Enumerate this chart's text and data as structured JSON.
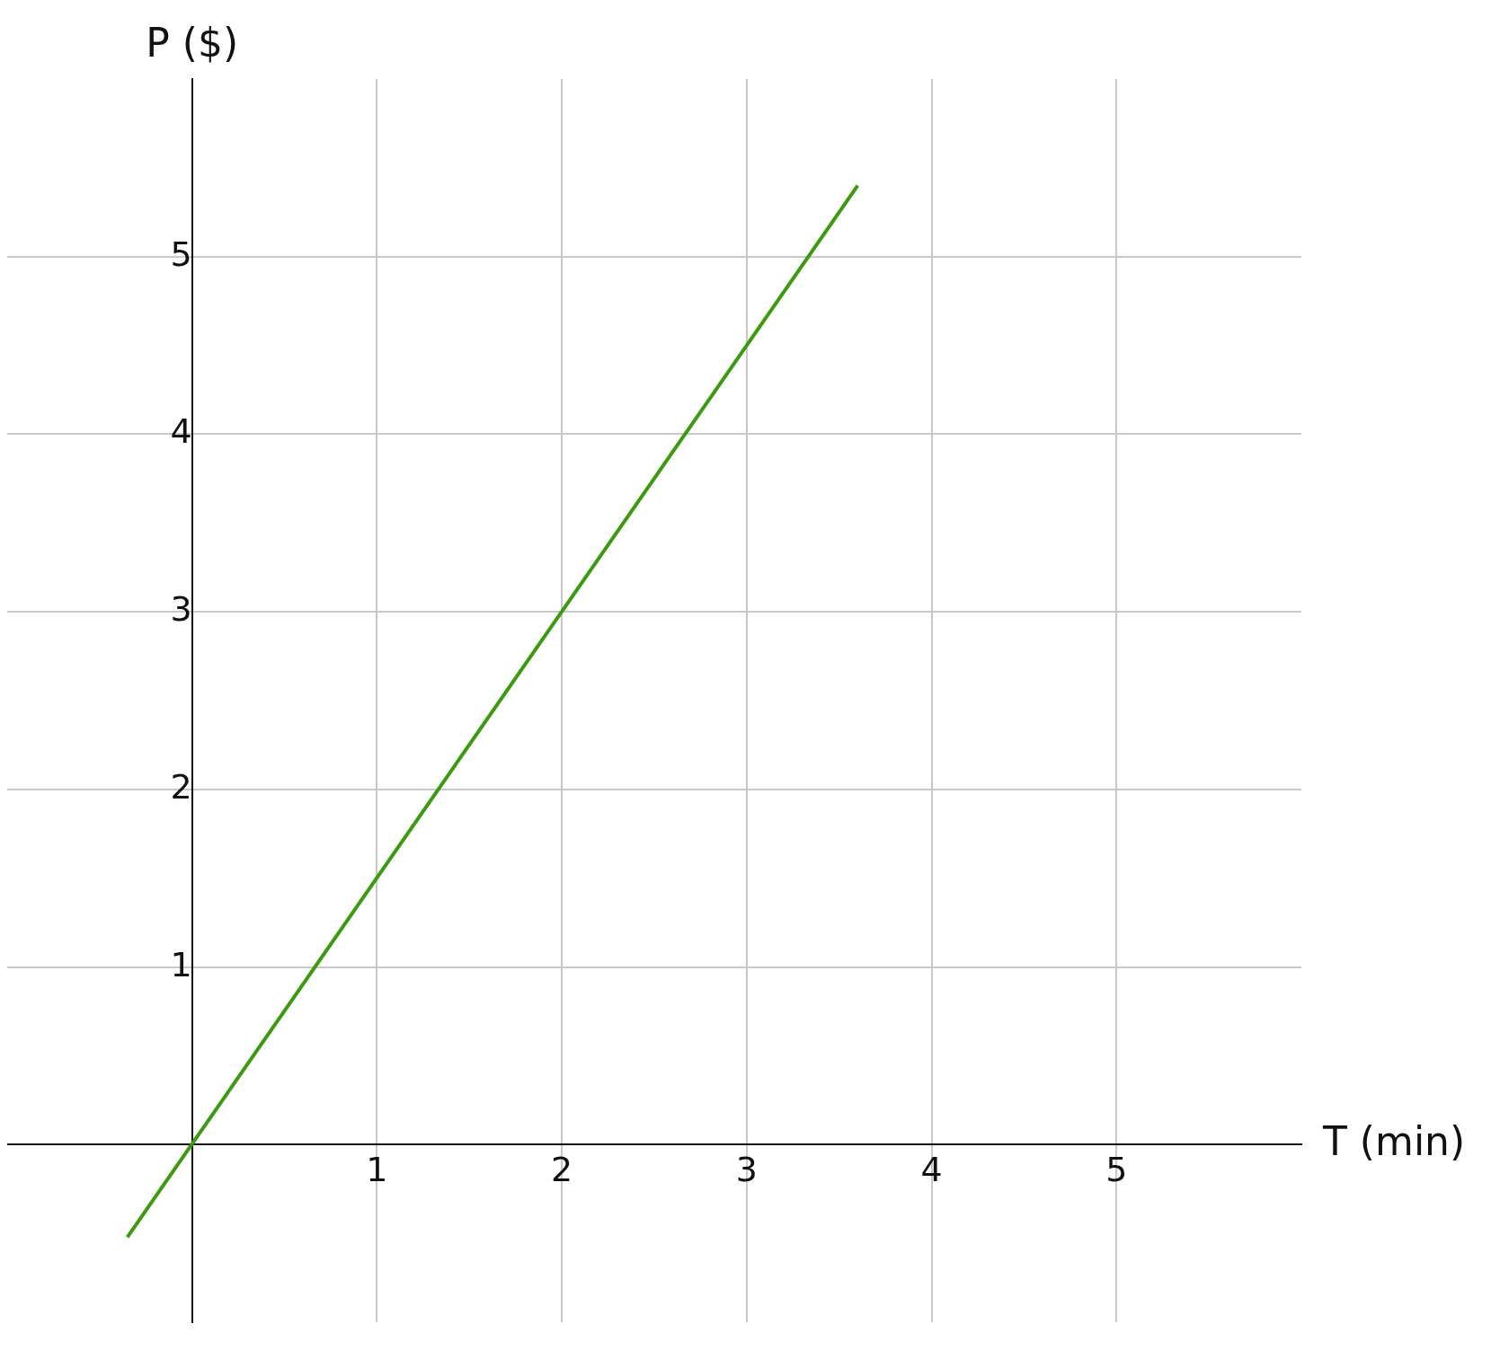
{
  "chart_data": {
    "type": "line",
    "xlabel": "T (min)",
    "ylabel": "P ($)",
    "series": [
      {
        "color": "#3c9a0e",
        "x": [
          -0.35,
          3.6
        ],
        "values": [
          -0.52,
          5.4
        ]
      }
    ],
    "xlim": [
      -1,
      6
    ],
    "ylim": [
      -1,
      6
    ],
    "xticks": [
      1,
      2,
      3,
      4,
      5
    ],
    "yticks": [
      1,
      2,
      3,
      4,
      5
    ],
    "grid": true,
    "legend": false,
    "marker": "none",
    "line_style": "solid"
  }
}
